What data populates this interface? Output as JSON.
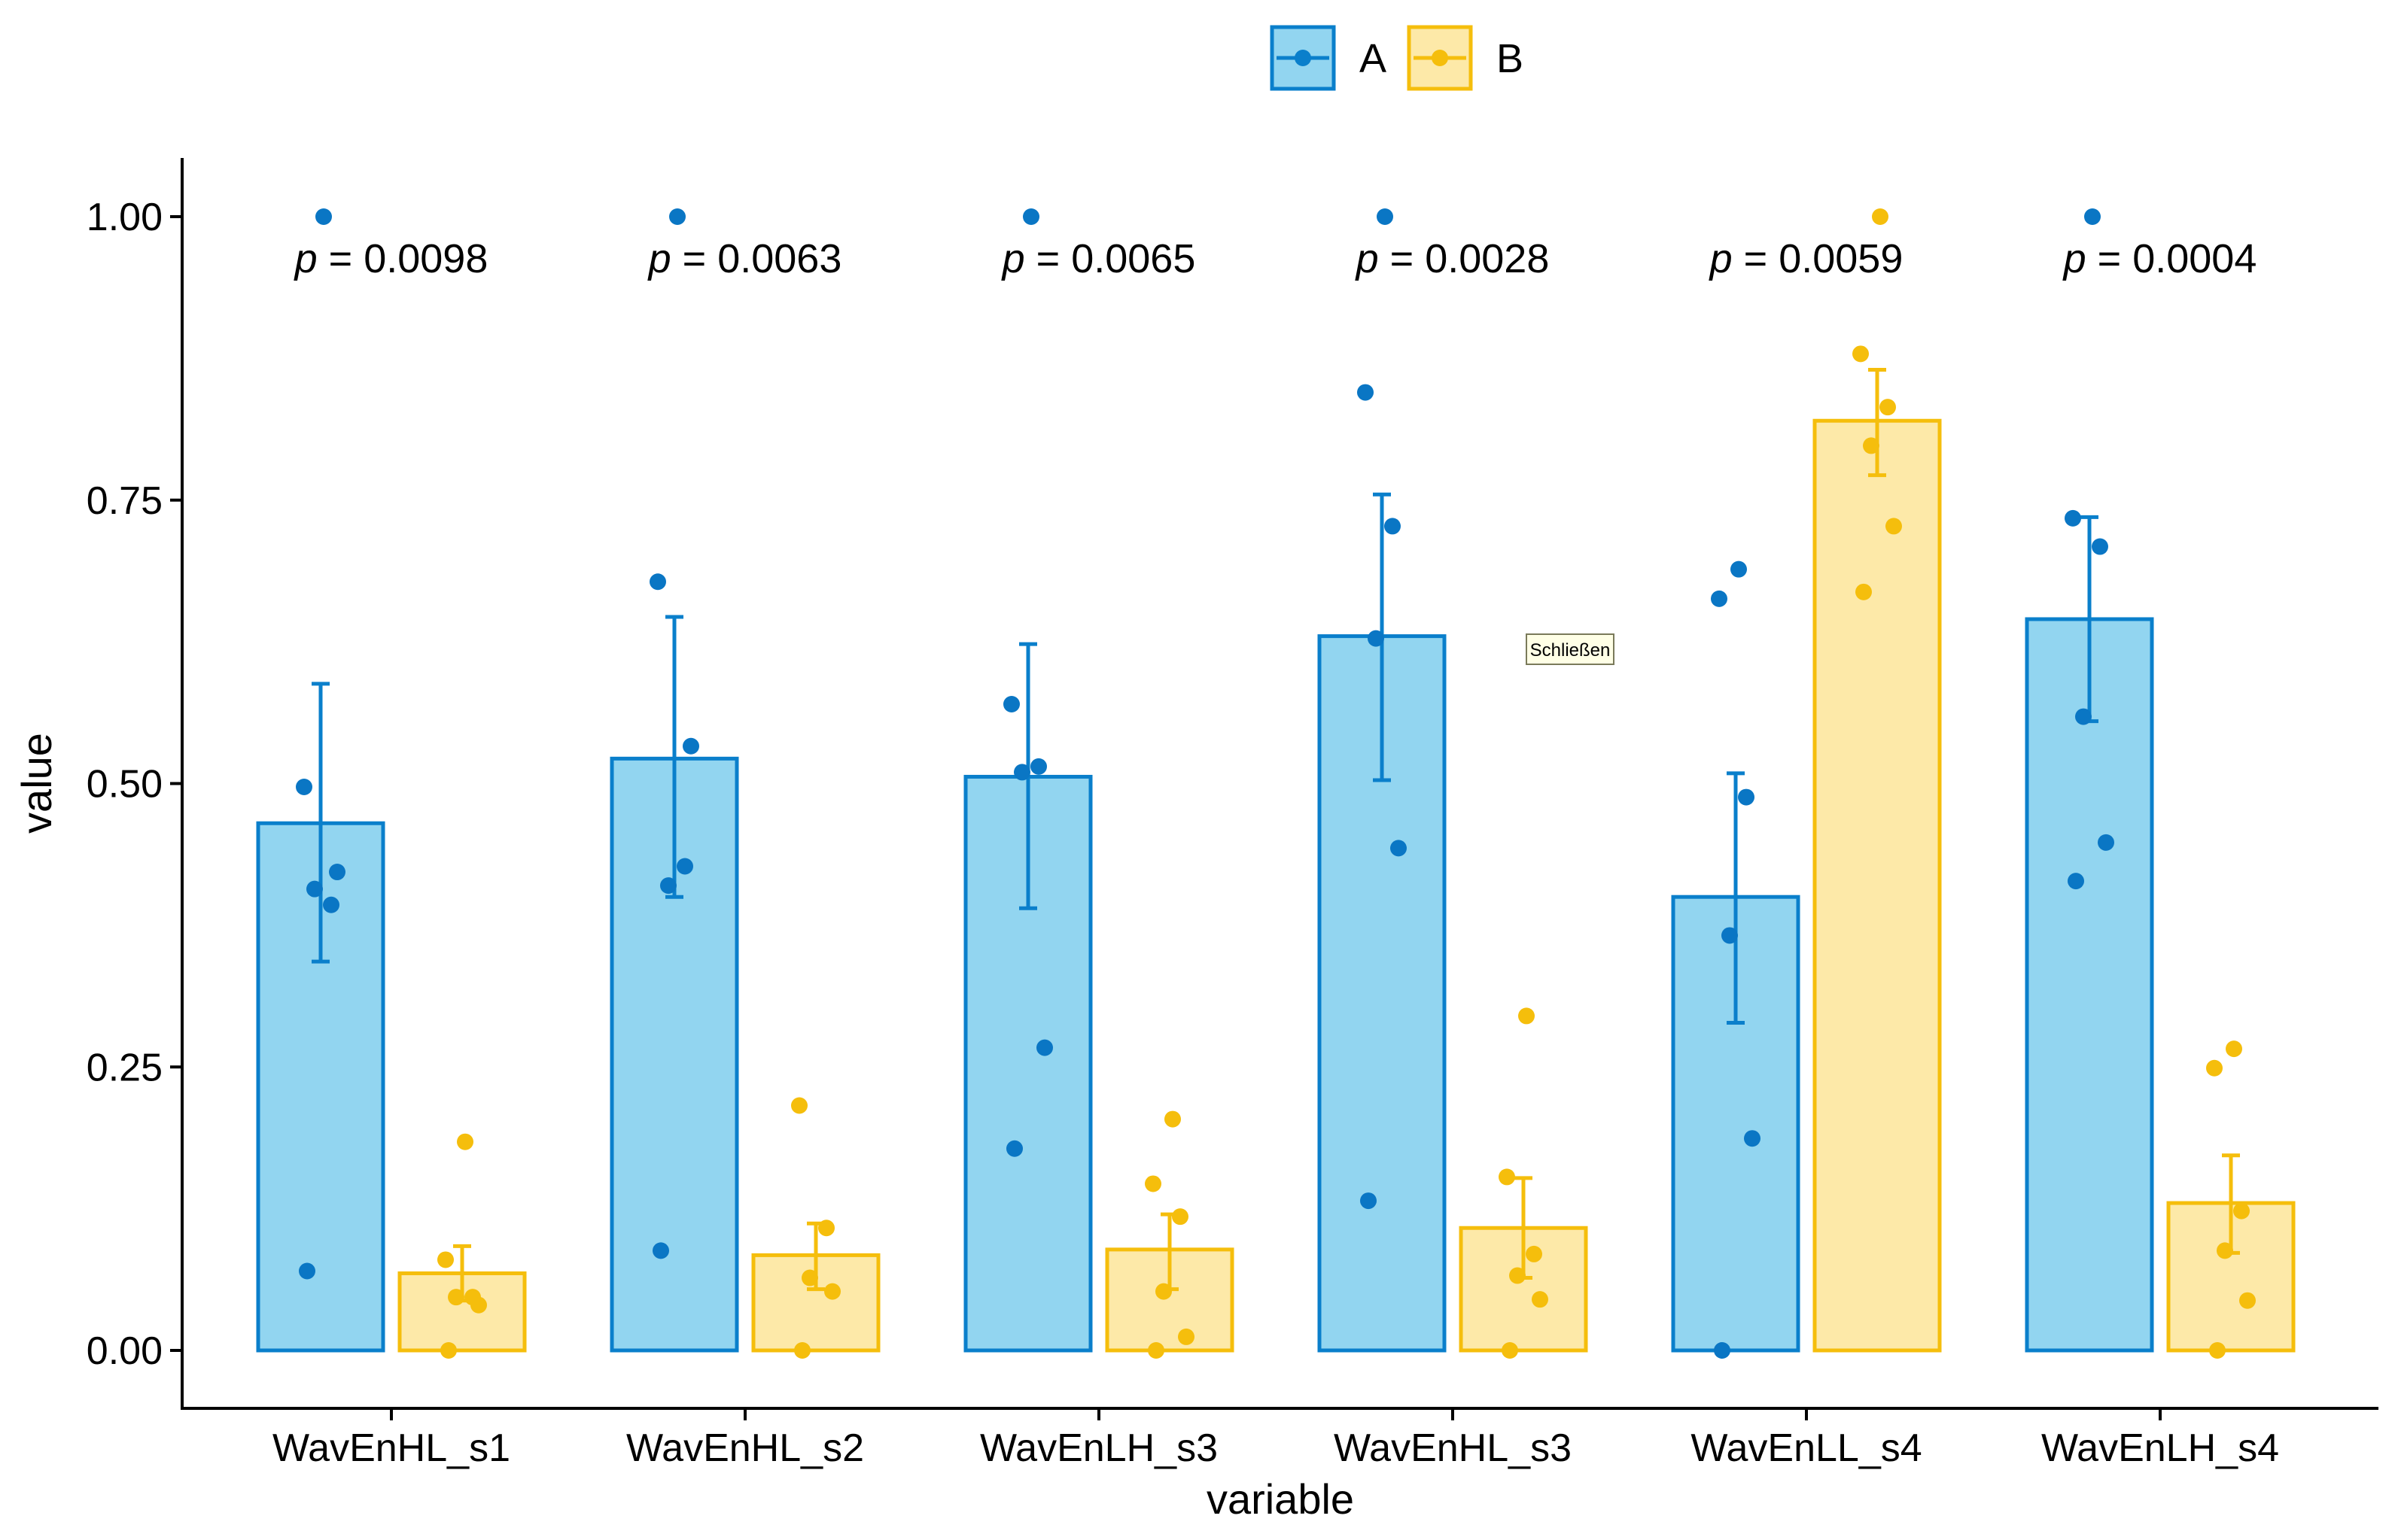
{
  "chart_data": {
    "type": "bar",
    "title": "",
    "xlabel": "variable",
    "ylabel": "value",
    "ylim": [
      0,
      1.05
    ],
    "yticks": [
      "0.00",
      "0.25",
      "0.50",
      "0.75",
      "1.00"
    ],
    "yticks_values": [
      0,
      0.25,
      0.5,
      0.75,
      1.0
    ],
    "categories": [
      "WavEnHL_s1",
      "WavEnHL_s2",
      "WavEnLH_s3",
      "WavEnHL_s3",
      "WavEnLL_s4",
      "WavEnLH_s4"
    ],
    "legend": {
      "position": "top",
      "entries": [
        "A",
        "B"
      ]
    },
    "colors": {
      "A_fill": "#92d5f0",
      "A_line": "#0a7fcb",
      "A_point": "#0a76c4",
      "B_fill": "#fde9a8",
      "B_line": "#f5be0c",
      "B_point": "#f5be0c"
    },
    "series": [
      {
        "name": "A",
        "values": [
          0.465,
          0.522,
          0.506,
          0.63,
          0.4,
          0.645
        ],
        "err_low": [
          0.343,
          0.4,
          0.39,
          0.503,
          0.289,
          0.555
        ],
        "err_high": [
          0.588,
          0.647,
          0.623,
          0.755,
          0.509,
          0.735
        ],
        "points": [
          [
            0.07,
            0.422,
            0.407,
            0.393,
            0.497,
            1.0
          ],
          [
            0.088,
            0.533,
            0.41,
            0.427,
            0.678,
            1.0
          ],
          [
            0.178,
            0.267,
            0.51,
            0.515,
            0.57,
            1.0
          ],
          [
            0.132,
            0.443,
            0.628,
            0.727,
            0.845,
            1.0
          ],
          [
            0.0,
            0.187,
            0.366,
            0.488,
            0.663,
            0.689
          ],
          [
            0.414,
            0.448,
            0.559,
            0.709,
            0.734,
            1.0
          ]
        ]
      },
      {
        "name": "B",
        "values": [
          0.068,
          0.084,
          0.089,
          0.108,
          0.82,
          0.13
        ],
        "err_low": [
          0.044,
          0.054,
          0.054,
          0.064,
          0.772,
          0.086
        ],
        "err_high": [
          0.092,
          0.112,
          0.12,
          0.152,
          0.865,
          0.172
        ],
        "points": [
          [
            0.0,
            0.04,
            0.047,
            0.047,
            0.08,
            0.184
          ],
          [
            0.0,
            0.052,
            0.064,
            0.108,
            0.216
          ],
          [
            0.0,
            0.012,
            0.052,
            0.118,
            0.147,
            0.204
          ],
          [
            0.0,
            0.045,
            0.066,
            0.085,
            0.153,
            0.295
          ],
          [
            0.669,
            0.727,
            0.798,
            0.832,
            0.879,
            1.0
          ],
          [
            0.0,
            0.044,
            0.088,
            0.123,
            0.249,
            0.266
          ]
        ]
      }
    ],
    "annotations": {
      "p_prefix": "p",
      "p_values": [
        "= 0.0098",
        "= 0.0063",
        "= 0.0065",
        "= 0.0028",
        "= 0.0059",
        "= 0.0004"
      ]
    },
    "tooltip": "Schließen"
  }
}
